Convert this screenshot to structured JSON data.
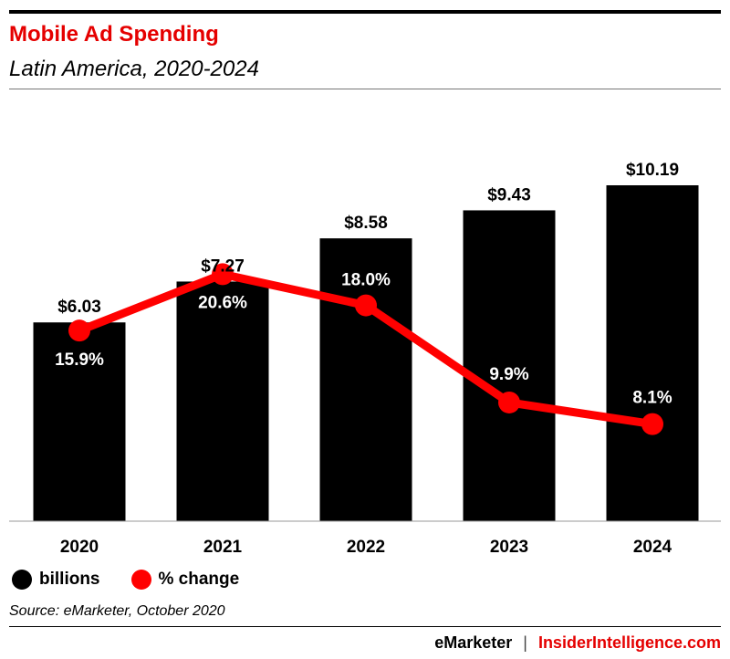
{
  "header": {
    "title": "Mobile Ad Spending",
    "subtitle": "Latin America, 2020-2024"
  },
  "legend": {
    "items": [
      {
        "label": "billions",
        "color": "#000000"
      },
      {
        "label": "% change",
        "color": "#ff0000"
      }
    ]
  },
  "footer": {
    "source": "Source: eMarketer, October 2020",
    "brand_left": "eMarketer",
    "separator": "|",
    "brand_right": "InsiderIntelligence.com"
  },
  "colors": {
    "title": "#e50000",
    "bars": "#000000",
    "line": "#ff0000"
  },
  "chart_data": {
    "type": "bar",
    "categories": [
      "2020",
      "2021",
      "2022",
      "2023",
      "2024"
    ],
    "series": [
      {
        "name": "billions",
        "type": "bar",
        "values": [
          6.03,
          7.27,
          8.58,
          9.43,
          10.19
        ],
        "labels": [
          "$6.03",
          "$7.27",
          "$8.58",
          "$9.43",
          "$10.19"
        ]
      },
      {
        "name": "% change",
        "type": "line",
        "values": [
          15.9,
          20.6,
          18.0,
          9.9,
          8.1
        ],
        "labels": [
          "15.9%",
          "20.6%",
          "18.0%",
          "9.9%",
          "8.1%"
        ]
      }
    ],
    "ylim_bars": [
      0,
      10.19
    ],
    "ylim_line": [
      0,
      25.2
    ],
    "grid": false,
    "legend_position": "bottom-left"
  }
}
